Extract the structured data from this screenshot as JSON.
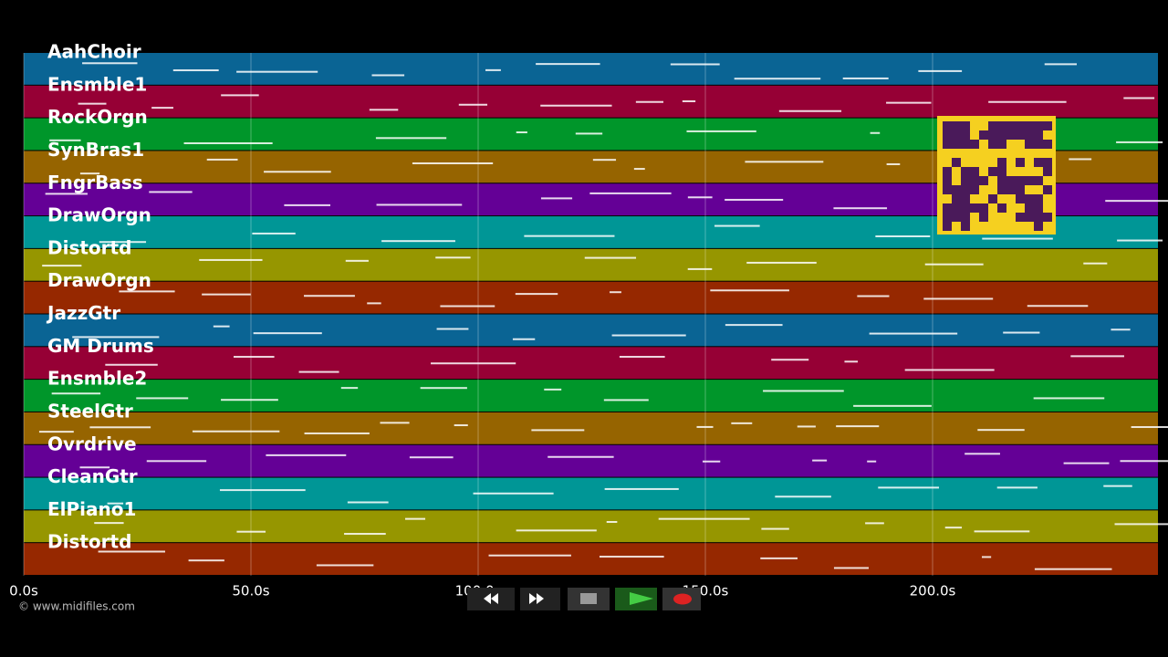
{
  "timeline": {
    "xlim": [
      0,
      249.6
    ],
    "xticks": [
      {
        "value": 0,
        "label": "0.0s"
      },
      {
        "value": 50,
        "label": "50.0s"
      },
      {
        "value": 100,
        "label": "100.0s"
      },
      {
        "value": 150,
        "label": "150.0s"
      },
      {
        "value": 200,
        "label": "200.0s"
      }
    ],
    "tracks": [
      {
        "name": "AahChoir",
        "color": "#0a6494"
      },
      {
        "name": "Ensmble1",
        "color": "#960035"
      },
      {
        "name": "RockOrgn",
        "color": "#00962a"
      },
      {
        "name": "SynBras1",
        "color": "#966400"
      },
      {
        "name": "FngrBass",
        "color": "#640096"
      },
      {
        "name": "DrawOrgn",
        "color": "#009696"
      },
      {
        "name": "Distortd",
        "color": "#969600"
      },
      {
        "name": "DrawOrgn",
        "color": "#962800"
      },
      {
        "name": "JazzGtr",
        "color": "#0a6494"
      },
      {
        "name": "GM Drums",
        "color": "#960035"
      },
      {
        "name": "Ensmble2",
        "color": "#00962a"
      },
      {
        "name": "SteelGtr",
        "color": "#966400"
      },
      {
        "name": "Ovrdrive",
        "color": "#640096"
      },
      {
        "name": "CleanGtr",
        "color": "#009696"
      },
      {
        "name": "ElPiano1",
        "color": "#969600"
      },
      {
        "name": "Distortd",
        "color": "#962800"
      }
    ]
  },
  "footer": {
    "copyright": "© www.midifiles.com"
  }
}
